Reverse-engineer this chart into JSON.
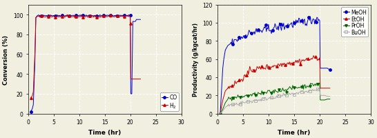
{
  "left": {
    "xlabel": "Time (hr)",
    "ylabel": "Conversion (%)",
    "xlim": [
      0,
      30
    ],
    "ylim": [
      0,
      110
    ],
    "yticks": [
      0,
      20,
      40,
      60,
      80,
      100
    ],
    "xticks": [
      0,
      5,
      10,
      15,
      20,
      25,
      30
    ],
    "CO_color": "#0000cc",
    "H2_color": "#cc0000",
    "legend_labels": [
      "CO",
      "H$_2$"
    ]
  },
  "right": {
    "xlabel": "Time (hr)",
    "ylabel": "Productivity (g/kgcat/hr)",
    "xlim": [
      0,
      30
    ],
    "ylim": [
      0,
      120
    ],
    "yticks": [
      0,
      20,
      40,
      60,
      80,
      100,
      120
    ],
    "xticks": [
      0,
      5,
      10,
      15,
      20,
      25,
      30
    ],
    "MeOH_color": "#0000cc",
    "EtOH_color": "#cc0000",
    "PrOH_color": "#006600",
    "BuOH_color": "#aaaaaa",
    "legend_labels": [
      "MeOH",
      "EtOH",
      "PrOH",
      "BuOH"
    ]
  },
  "bg_color": "#f0efe0"
}
